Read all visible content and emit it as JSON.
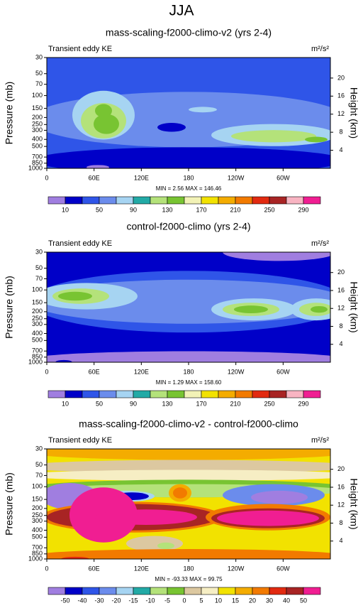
{
  "title": "JJA",
  "chart_data": [
    {
      "type": "contour",
      "title": "mass-scaling-f2000-climo-v2 (yrs 2-4)",
      "subtitle": "Transient eddy KE",
      "units": "m²/s²",
      "ylabel": "Pressure (mb)",
      "y2label": "Height (km)",
      "y_log": true,
      "ylim": [
        1000,
        30
      ],
      "yticks": [
        30,
        50,
        70,
        100,
        150,
        200,
        250,
        300,
        400,
        500,
        700,
        850,
        1000
      ],
      "y2ticks": [
        4,
        8,
        12,
        16,
        20
      ],
      "xlim": [
        0,
        360
      ],
      "xticks": [
        0,
        {
          "value": 60,
          "label": "60E"
        },
        {
          "value": 120,
          "label": "120E"
        },
        180,
        {
          "value": 240,
          "label": "120W"
        },
        {
          "value": 300,
          "label": "60W"
        }
      ],
      "stats": "MIN =   2.56  MAX = 146.46",
      "colorbar": {
        "colors": [
          "#a07ee0",
          "#0000c8",
          "#2f55e8",
          "#6b8cec",
          "#a6d4f2",
          "#22aaa6",
          "#b4e27a",
          "#78c432",
          "#f2f2b6",
          "#f2e200",
          "#f4ac00",
          "#f27a00",
          "#e22a10",
          "#a82424",
          "#f8b4c2",
          "#f01e92"
        ],
        "labels": [
          10,
          50,
          90,
          130,
          170,
          210,
          250,
          290
        ]
      }
    },
    {
      "type": "contour",
      "title": "control-f2000-climo (yrs 2-4)",
      "subtitle": "Transient eddy KE",
      "units": "m²/s²",
      "ylabel": "Pressure (mb)",
      "y2label": "Height (km)",
      "y_log": true,
      "ylim": [
        1000,
        30
      ],
      "yticks": [
        30,
        50,
        70,
        100,
        150,
        200,
        250,
        300,
        400,
        500,
        700,
        850,
        1000
      ],
      "y2ticks": [
        4,
        8,
        12,
        16,
        20
      ],
      "xlim": [
        0,
        360
      ],
      "xticks": [
        0,
        {
          "value": 60,
          "label": "60E"
        },
        {
          "value": 120,
          "label": "120E"
        },
        180,
        {
          "value": 240,
          "label": "120W"
        },
        {
          "value": 300,
          "label": "60W"
        }
      ],
      "stats": "MIN =   1.29  MAX = 158.60",
      "colorbar": {
        "colors": [
          "#a07ee0",
          "#0000c8",
          "#2f55e8",
          "#6b8cec",
          "#a6d4f2",
          "#22aaa6",
          "#b4e27a",
          "#78c432",
          "#f2f2b6",
          "#f2e200",
          "#f4ac00",
          "#f27a00",
          "#e22a10",
          "#a82424",
          "#f8b4c2",
          "#f01e92"
        ],
        "labels": [
          10,
          50,
          90,
          130,
          170,
          210,
          250,
          290
        ]
      }
    },
    {
      "type": "contour",
      "title": "mass-scaling-f2000-climo-v2 - control-f2000-climo",
      "subtitle": "Transient eddy KE",
      "units": "m²/s²",
      "ylabel": "Pressure (mb)",
      "y2label": "Height (km)",
      "y_log": true,
      "ylim": [
        1000,
        30
      ],
      "yticks": [
        30,
        50,
        70,
        100,
        150,
        200,
        250,
        300,
        400,
        500,
        700,
        850,
        1000
      ],
      "y2ticks": [
        4,
        8,
        12,
        16,
        20
      ],
      "xlim": [
        0,
        360
      ],
      "xticks": [
        0,
        {
          "value": 60,
          "label": "60E"
        },
        {
          "value": 120,
          "label": "120E"
        },
        180,
        {
          "value": 240,
          "label": "120W"
        },
        {
          "value": 300,
          "label": "60W"
        }
      ],
      "stats": "MIN = -93.33  MAX = 99.75",
      "colorbar": {
        "colors": [
          "#a07ee0",
          "#0000c8",
          "#2f55e8",
          "#6b8cec",
          "#a6d4f2",
          "#22aaa6",
          "#b4e27a",
          "#78c432",
          "#dcc8a0",
          "#f6eec4",
          "#f2e200",
          "#f4ac00",
          "#f27a00",
          "#e22a10",
          "#a82424",
          "#f01e92"
        ],
        "labels": [
          -50,
          -40,
          -30,
          -20,
          -15,
          -10,
          -5,
          0,
          5,
          10,
          15,
          20,
          30,
          40,
          50
        ]
      }
    }
  ]
}
